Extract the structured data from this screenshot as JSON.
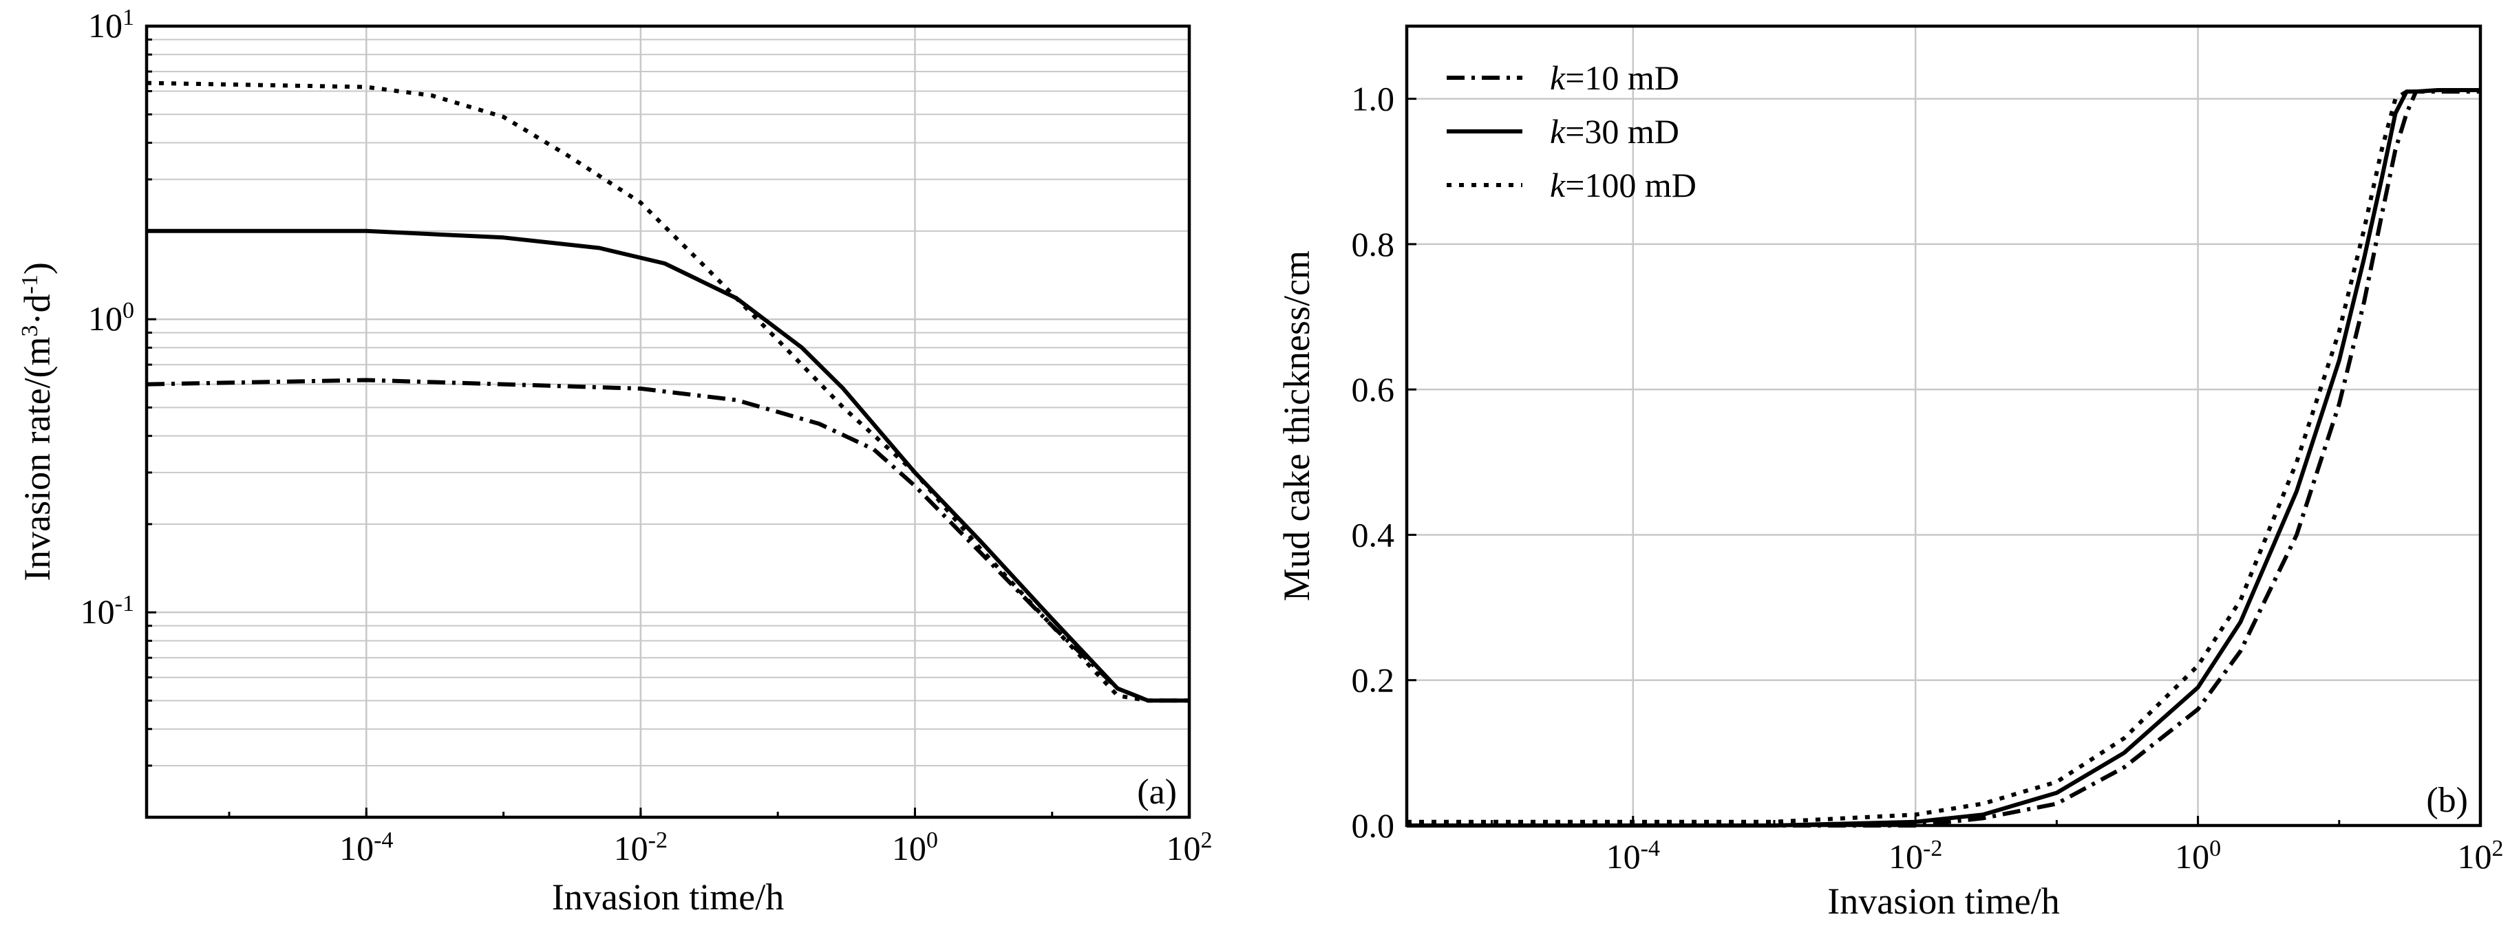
{
  "chart_data": [
    {
      "panel": "(a)",
      "type": "line",
      "xlabel": "Invasion time/h",
      "ylabel": "Invasion rate/(m³·d⁻¹)",
      "ylabel_main": "Invasion rate/(m",
      "ylabel_sup1": "3",
      "ylabel_mid": "·d",
      "ylabel_sup2": "-1",
      "ylabel_end": ")",
      "xscale": "log",
      "yscale": "log",
      "xlim": [
        2.5e-06,
        100
      ],
      "ylim": [
        0.02,
        10
      ],
      "x_ticks": [
        {
          "value": 0.0001,
          "base": "10",
          "exp": "-4"
        },
        {
          "value": 0.01,
          "base": "10",
          "exp": "-2"
        },
        {
          "value": 1,
          "base": "10",
          "exp": "0"
        },
        {
          "value": 100,
          "base": "10",
          "exp": "2"
        }
      ],
      "y_ticks": [
        {
          "value": 0.1,
          "base": "10",
          "exp": "-1"
        },
        {
          "value": 1,
          "base": "10",
          "exp": "0"
        },
        {
          "value": 10,
          "base": "10",
          "exp": "1"
        }
      ],
      "grid": true,
      "series": [
        {
          "style": "dashdot",
          "x": [
            2.5e-06,
            0.0001,
            0.001,
            0.01,
            0.05,
            0.2,
            0.5,
            1,
            3,
            10,
            30,
            50,
            100
          ],
          "y": [
            0.6,
            0.62,
            0.6,
            0.58,
            0.53,
            0.44,
            0.36,
            0.27,
            0.16,
            0.09,
            0.055,
            0.05,
            0.05
          ]
        },
        {
          "style": "solid",
          "x": [
            2.5e-06,
            0.0001,
            0.001,
            0.005,
            0.015,
            0.05,
            0.15,
            0.3,
            1,
            3,
            10,
            30,
            50,
            100
          ],
          "y": [
            2.0,
            2.0,
            1.9,
            1.75,
            1.55,
            1.18,
            0.8,
            0.58,
            0.3,
            0.175,
            0.095,
            0.055,
            0.05,
            0.05
          ]
        },
        {
          "style": "dotted",
          "x": [
            2.5e-06,
            0.0001,
            0.0003,
            0.001,
            0.003,
            0.01,
            0.03,
            0.1,
            0.3,
            1,
            3,
            10,
            30,
            50,
            100
          ],
          "y": [
            6.4,
            6.2,
            5.8,
            4.9,
            3.6,
            2.5,
            1.5,
            0.85,
            0.5,
            0.3,
            0.165,
            0.09,
            0.052,
            0.05,
            0.05
          ]
        }
      ]
    },
    {
      "panel": "(b)",
      "type": "line",
      "xlabel": "Invasion time/h",
      "ylabel": "Mud cake thickness/cm",
      "xscale": "log",
      "yscale": "linear",
      "xlim": [
        2.5e-06,
        100
      ],
      "ylim": [
        0,
        1.1
      ],
      "x_ticks": [
        {
          "value": 0.0001,
          "base": "10",
          "exp": "-4"
        },
        {
          "value": 0.01,
          "base": "10",
          "exp": "-2"
        },
        {
          "value": 1,
          "base": "10",
          "exp": "0"
        },
        {
          "value": 100,
          "base": "10",
          "exp": "2"
        }
      ],
      "y_ticks": [
        "0.0",
        "0.2",
        "0.4",
        "0.6",
        "0.8",
        "1.0"
      ],
      "grid": true,
      "legend_position": "top-left",
      "series": [
        {
          "style": "dashdot",
          "label_italic": "k",
          "label_rest": "=10 mD",
          "x": [
            2.5e-06,
            0.001,
            0.01,
            0.03,
            0.1,
            0.3,
            1,
            2,
            5,
            10,
            15,
            20,
            25,
            30,
            35,
            50,
            100
          ],
          "y": [
            0.0,
            0.0,
            0.0,
            0.01,
            0.03,
            0.08,
            0.16,
            0.24,
            0.4,
            0.58,
            0.72,
            0.84,
            0.93,
            0.98,
            1.01,
            1.01,
            1.01
          ]
        },
        {
          "style": "solid",
          "label_italic": "k",
          "label_rest": "=30 mD",
          "x": [
            2.5e-06,
            0.001,
            0.01,
            0.03,
            0.1,
            0.3,
            1,
            2,
            5,
            10,
            15,
            20,
            25,
            30,
            35,
            50,
            100
          ],
          "y": [
            0.0,
            0.0,
            0.005,
            0.015,
            0.045,
            0.1,
            0.19,
            0.28,
            0.46,
            0.64,
            0.78,
            0.89,
            0.98,
            1.01,
            1.01,
            1.012,
            1.012
          ]
        },
        {
          "style": "dotted",
          "label_italic": "k",
          "label_rest": "=100 mD",
          "x": [
            2.5e-06,
            0.001,
            0.01,
            0.03,
            0.1,
            0.3,
            1,
            2,
            5,
            10,
            15,
            20,
            25,
            30,
            35,
            50,
            100
          ],
          "y": [
            0.005,
            0.005,
            0.015,
            0.03,
            0.06,
            0.12,
            0.22,
            0.31,
            0.5,
            0.68,
            0.82,
            0.93,
            1.0,
            1.01,
            1.01,
            1.012,
            1.012
          ]
        }
      ]
    }
  ]
}
